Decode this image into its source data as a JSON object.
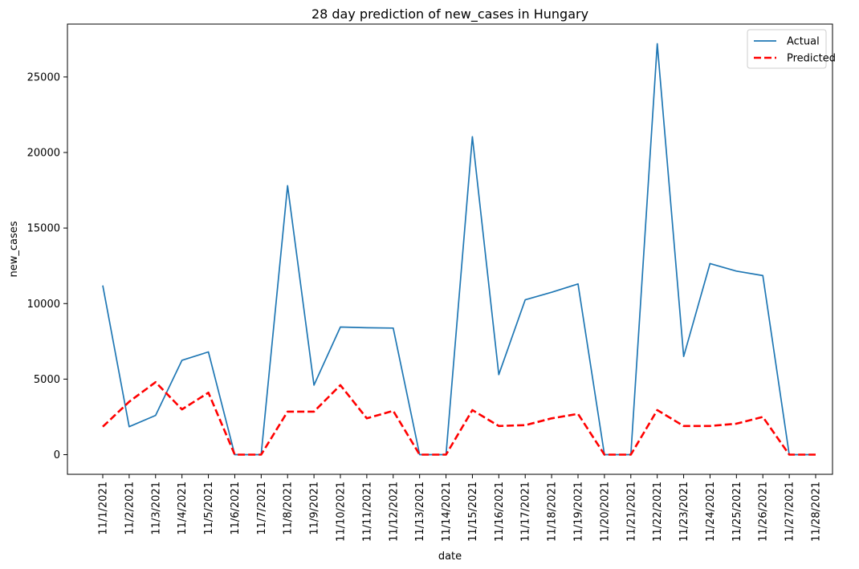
{
  "chart_data": {
    "type": "line",
    "title": "28 day prediction of new_cases in Hungary",
    "xlabel": "date",
    "ylabel": "new_cases",
    "ylim": [
      -1300,
      28500
    ],
    "yticks": [
      0,
      5000,
      10000,
      15000,
      20000,
      25000
    ],
    "grid": false,
    "legend_position": "top-right",
    "categories": [
      "11/1/2021",
      "11/2/2021",
      "11/3/2021",
      "11/4/2021",
      "11/5/2021",
      "11/6/2021",
      "11/7/2021",
      "11/8/2021",
      "11/9/2021",
      "11/10/2021",
      "11/11/2021",
      "11/12/2021",
      "11/13/2021",
      "11/14/2021",
      "11/15/2021",
      "11/16/2021",
      "11/17/2021",
      "11/18/2021",
      "11/19/2021",
      "11/20/2021",
      "11/21/2021",
      "11/22/2021",
      "11/23/2021",
      "11/24/2021",
      "11/25/2021",
      "11/26/2021",
      "11/27/2021",
      "11/28/2021"
    ],
    "series": [
      {
        "name": "Actual",
        "color": "#1f77b4",
        "style": "solid",
        "values": [
          11200,
          1850,
          2600,
          6250,
          6800,
          0,
          0,
          17800,
          4600,
          8450,
          8400,
          8380,
          0,
          0,
          21050,
          5300,
          10250,
          10750,
          11300,
          0,
          0,
          27200,
          6500,
          12650,
          12150,
          11850,
          0,
          0
        ]
      },
      {
        "name": "Predicted",
        "color": "#ff0000",
        "style": "dashed",
        "values": [
          1850,
          3500,
          4800,
          3000,
          4100,
          0,
          0,
          2850,
          2850,
          4600,
          2400,
          2900,
          0,
          0,
          2950,
          1900,
          1950,
          2400,
          2700,
          0,
          0,
          2950,
          1900,
          1900,
          2050,
          2500,
          0,
          0
        ]
      }
    ]
  }
}
